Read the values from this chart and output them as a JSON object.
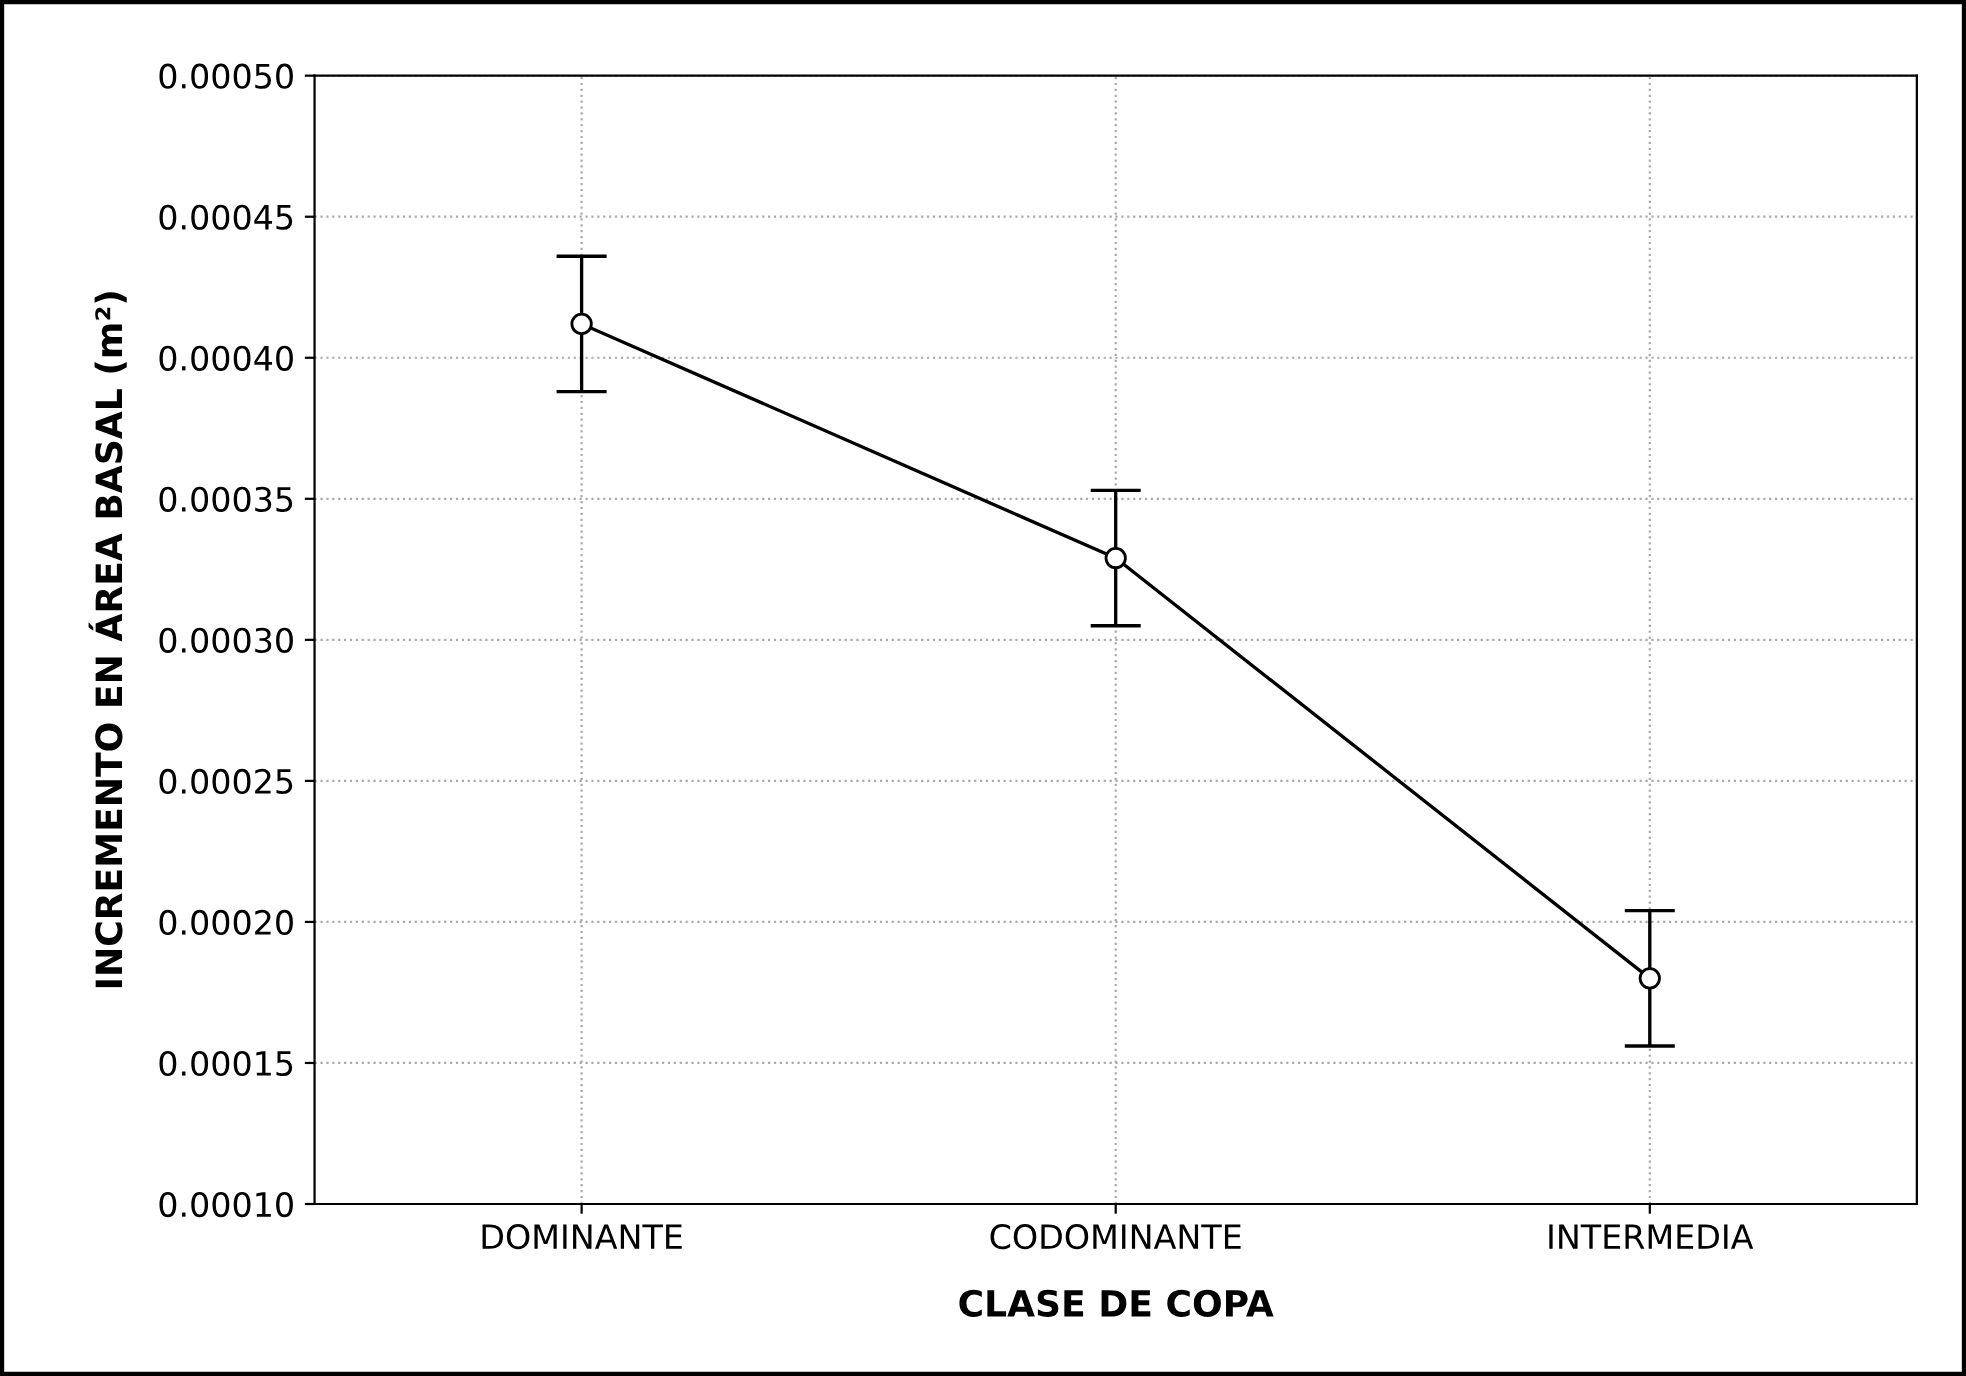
{
  "chart_data": {
    "type": "line",
    "xlabel": "CLASE DE COPA",
    "ylabel": "INCREMENTO EN ÁREA BASAL (m²)",
    "categories": [
      "DOMINANTE",
      "CODOMINANTE",
      "INTERMEDIA"
    ],
    "series": [
      {
        "color": "#000000",
        "values": [
          0.000412,
          0.000329,
          0.00018
        ],
        "errors": [
          2.4e-05,
          2.4e-05,
          2.4e-05
        ]
      }
    ],
    "ylim": [
      0.0001,
      0.0005
    ],
    "yticks": [
      {
        "value": 0.0001,
        "label": "0.00010"
      },
      {
        "value": 0.00015,
        "label": "0.00015"
      },
      {
        "value": 0.0002,
        "label": "0.00020"
      },
      {
        "value": 0.00025,
        "label": "0.00025"
      },
      {
        "value": 0.0003,
        "label": "0.00030"
      },
      {
        "value": 0.00035,
        "label": "0.00035"
      },
      {
        "value": 0.0004,
        "label": "0.00040"
      },
      {
        "value": 0.00045,
        "label": "0.00045"
      },
      {
        "value": 0.0005,
        "label": "0.00050"
      }
    ],
    "grid": true,
    "marker": "circle",
    "line_style": "solid"
  }
}
